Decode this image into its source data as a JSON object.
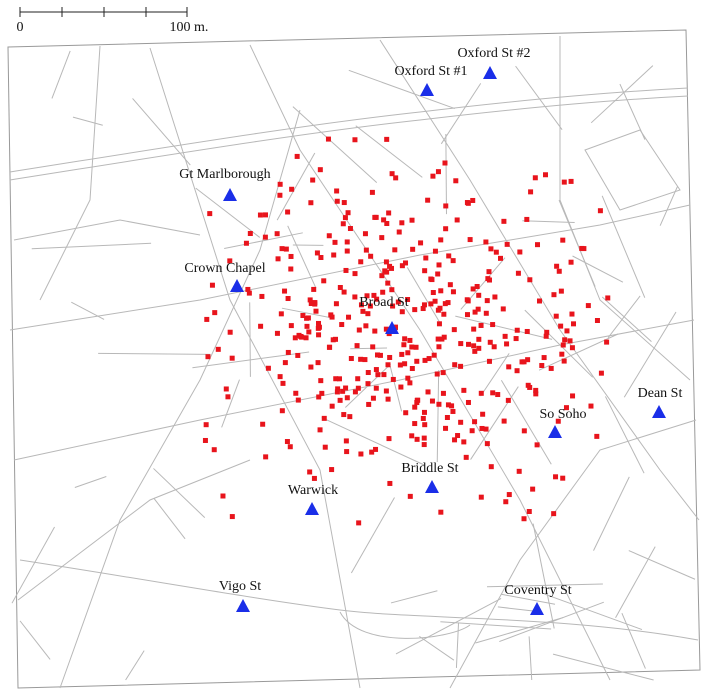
{
  "scale_bar": {
    "labels": [
      "0",
      "100 m."
    ]
  },
  "pumps": [
    {
      "name": "Oxford St #2"
    },
    {
      "name": "Oxford St #1"
    },
    {
      "name": "Gt Marlborough"
    },
    {
      "name": "Crown Chapel"
    },
    {
      "name": "Broad St"
    },
    {
      "name": "Dean St"
    },
    {
      "name": "So Soho"
    },
    {
      "name": "Briddle St"
    },
    {
      "name": "Warwick"
    },
    {
      "name": "Vigo St"
    },
    {
      "name": "Coventry St"
    }
  ]
}
